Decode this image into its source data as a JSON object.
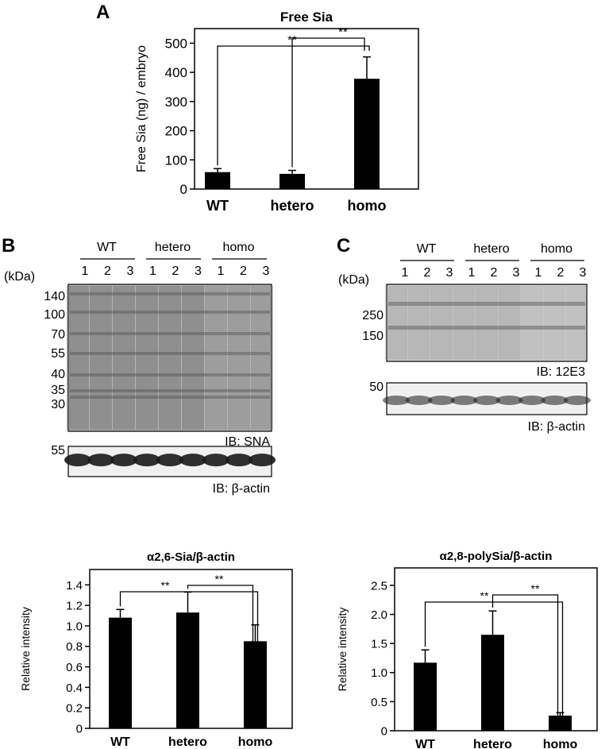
{
  "panel_letters": {
    "a": "A",
    "b": "B",
    "c": "C"
  },
  "blot_b": {
    "groups": [
      "WT",
      "hetero",
      "homo"
    ],
    "lanes": [
      "1",
      "2",
      "3",
      "1",
      "2",
      "3",
      "1",
      "2",
      "3"
    ],
    "kda_label": "(kDa)",
    "markers": [
      "140",
      "100",
      "70",
      "55",
      "40",
      "35",
      "30"
    ],
    "ib_label": "IB: SNA",
    "actin_marker": "55",
    "actin_label": "IB: β-actin"
  },
  "blot_c": {
    "groups": [
      "WT",
      "hetero",
      "homo"
    ],
    "lanes": [
      "1",
      "2",
      "3",
      "1",
      "2",
      "3",
      "1",
      "2",
      "3"
    ],
    "kda_label": "(kDa)",
    "markers": [
      "250",
      "150"
    ],
    "ib_label": "IB: 12E3",
    "actin_marker": "50",
    "actin_label": "IB: β-actin"
  },
  "chart_data": [
    {
      "type": "bar",
      "title": "Free Sia",
      "ylabel": "Free Sia (ng) / embryo",
      "categories": [
        "WT",
        "hetero",
        "homo"
      ],
      "values": [
        58,
        52,
        378
      ],
      "errors": [
        12,
        12,
        75
      ],
      "ylim": [
        0,
        550
      ],
      "yticks": [
        "0",
        "100",
        "200",
        "300",
        "400",
        "500"
      ],
      "significance": [
        "**",
        "**"
      ]
    },
    {
      "type": "bar",
      "title": "α2,6-Sia/β-actin",
      "ylabel": "Relative intensity",
      "categories": [
        "WT",
        "hetero",
        "homo"
      ],
      "values": [
        1.08,
        1.13,
        0.85
      ],
      "errors": [
        0.08,
        0.2,
        0.16
      ],
      "ylim": [
        0,
        1.55
      ],
      "yticks": [
        "0",
        "0.2",
        "0.4",
        "0.6",
        "0.8",
        "1.0",
        "1.2",
        "1.4"
      ],
      "significance": [
        "**",
        "**"
      ]
    },
    {
      "type": "bar",
      "title": "α2,8-polySia/β-actin",
      "ylabel": "Relative intensity",
      "categories": [
        "WT",
        "hetero",
        "homo"
      ],
      "values": [
        1.17,
        1.65,
        0.26
      ],
      "errors": [
        0.22,
        0.41,
        0.05
      ],
      "ylim": [
        0,
        2.8
      ],
      "yticks": [
        "0",
        "0.5",
        "1.0",
        "1.5",
        "2.0",
        "2.5"
      ],
      "significance": [
        "**",
        "**"
      ]
    }
  ]
}
